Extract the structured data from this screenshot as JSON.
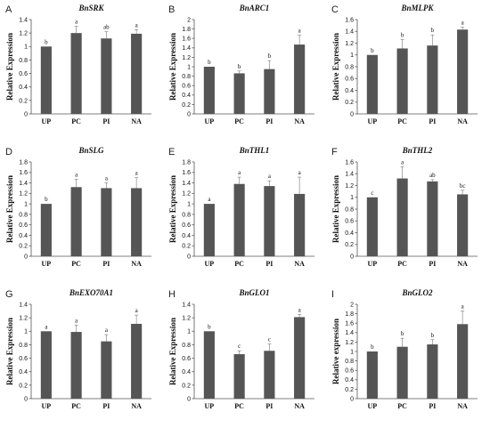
{
  "chart_data": [
    {
      "type": "bar",
      "panel": "A",
      "title": "BnSRK",
      "ylabel": "Relative Expression",
      "categories": [
        "UP",
        "PC",
        "PI",
        "NA"
      ],
      "values": [
        1.0,
        1.2,
        1.12,
        1.19
      ],
      "errors": [
        0,
        0.1,
        0.1,
        0.06
      ],
      "sig": [
        "b",
        "a",
        "ab",
        "a"
      ],
      "ylim": [
        0,
        1.4
      ],
      "yticks": [
        "0",
        "0.2",
        "0.4",
        "0.6",
        "0.8",
        "1",
        "1.2",
        "1.4"
      ]
    },
    {
      "type": "bar",
      "panel": "B",
      "title": "BnARC1",
      "ylabel": "Relative Expression",
      "categories": [
        "UP",
        "PC",
        "PI",
        "NA"
      ],
      "values": [
        1.0,
        0.86,
        0.95,
        1.47
      ],
      "errors": [
        0,
        0.05,
        0.18,
        0.2
      ],
      "sig": [
        "b",
        "b",
        "b",
        "a"
      ],
      "ylim": [
        0,
        2
      ],
      "yticks": [
        "0",
        "0.2",
        "0.4",
        "0.6",
        "0.8",
        "1",
        "1.2",
        "1.4",
        "1.6",
        "1.8",
        "2"
      ]
    },
    {
      "type": "bar",
      "panel": "C",
      "title": "BnMLPK",
      "ylabel": "Relative Expression",
      "categories": [
        "UP",
        "PC",
        "PI",
        "NA"
      ],
      "values": [
        1.0,
        1.11,
        1.16,
        1.43
      ],
      "errors": [
        0,
        0.15,
        0.18,
        0.04
      ],
      "sig": [
        "b",
        "b",
        "b",
        "a"
      ],
      "ylim": [
        0,
        1.6
      ],
      "yticks": [
        "0",
        "0.2",
        "0.4",
        "0.6",
        "0.8",
        "1",
        "1.2",
        "1.4",
        "1.6"
      ]
    },
    {
      "type": "bar",
      "panel": "D",
      "title": "BnSLG",
      "ylabel": "Relative Expression",
      "categories": [
        "UP",
        "PC",
        "PI",
        "NA"
      ],
      "values": [
        1.0,
        1.32,
        1.3,
        1.3
      ],
      "errors": [
        0,
        0.15,
        0.1,
        0.2
      ],
      "sig": [
        "b",
        "a",
        "a",
        "a"
      ],
      "ylim": [
        0,
        1.8
      ],
      "yticks": [
        "0",
        "0.2",
        "0.4",
        "0.6",
        "0.8",
        "1",
        "1.2",
        "1.4",
        "1.6",
        "1.8"
      ]
    },
    {
      "type": "bar",
      "panel": "E",
      "title": "BnTHL1",
      "ylabel": "Relative Expression",
      "categories": [
        "UP",
        "PC",
        "PI",
        "NA"
      ],
      "values": [
        1.0,
        1.38,
        1.34,
        1.19
      ],
      "errors": [
        0,
        0.13,
        0.1,
        0.32
      ],
      "sig": [
        "a",
        "a",
        "a",
        "a"
      ],
      "ylim": [
        0,
        1.8
      ],
      "yticks": [
        "0",
        "0.2",
        "0.4",
        "0.6",
        "0.8",
        "1",
        "1.2",
        "1.4",
        "1.6",
        "1.8"
      ]
    },
    {
      "type": "bar",
      "panel": "F",
      "title": "BnTHL2",
      "ylabel": "Relative Expression",
      "categories": [
        "UP",
        "PC",
        "PI",
        "NA"
      ],
      "values": [
        1.0,
        1.32,
        1.27,
        1.05
      ],
      "errors": [
        0,
        0.2,
        0.03,
        0.07
      ],
      "sig": [
        "c",
        "a",
        "ab",
        "bc"
      ],
      "ylim": [
        0,
        1.6
      ],
      "yticks": [
        "0",
        "0.2",
        "0.4",
        "0.6",
        "0.8",
        "1",
        "1.2",
        "1.4",
        "1.6"
      ]
    },
    {
      "type": "bar",
      "panel": "G",
      "title": "BnEXO70A1",
      "ylabel": "Relative Expression",
      "categories": [
        "UP",
        "PC",
        "PI",
        "NA"
      ],
      "values": [
        1.0,
        0.99,
        0.85,
        1.11
      ],
      "errors": [
        0,
        0.1,
        0.1,
        0.13
      ],
      "sig": [
        "a",
        "a",
        "a",
        "a"
      ],
      "ylim": [
        0,
        1.4
      ],
      "yticks": [
        "0",
        "0.2",
        "0.4",
        "0.6",
        "0.8",
        "1",
        "1.2",
        "1.4"
      ]
    },
    {
      "type": "bar",
      "panel": "H",
      "title": "BnGLO1",
      "ylabel": "Relative Expression",
      "categories": [
        "UP",
        "PC",
        "PI",
        "NA"
      ],
      "values": [
        1.0,
        0.66,
        0.71,
        1.21
      ],
      "errors": [
        0,
        0.05,
        0.1,
        0.04
      ],
      "sig": [
        "b",
        "c",
        "c",
        "a"
      ],
      "ylim": [
        0,
        1.4
      ],
      "yticks": [
        "0",
        "0.2",
        "0.4",
        "0.6",
        "0.8",
        "1",
        "1.2",
        "1.4"
      ]
    },
    {
      "type": "bar",
      "panel": "I",
      "title": "BnGLO2",
      "ylabel": "Relative expression",
      "categories": [
        "UP",
        "PC",
        "PI",
        "NA"
      ],
      "values": [
        1.0,
        1.1,
        1.15,
        1.58
      ],
      "errors": [
        0,
        0.18,
        0.1,
        0.28
      ],
      "sig": [
        "b",
        "b",
        "b",
        "a"
      ],
      "ylim": [
        0,
        2
      ],
      "yticks": [
        "0",
        "0.2",
        "0.4",
        "0.6",
        "0.8",
        "1",
        "1.2",
        "1.4",
        "1.6",
        "1.8",
        "2"
      ]
    }
  ]
}
